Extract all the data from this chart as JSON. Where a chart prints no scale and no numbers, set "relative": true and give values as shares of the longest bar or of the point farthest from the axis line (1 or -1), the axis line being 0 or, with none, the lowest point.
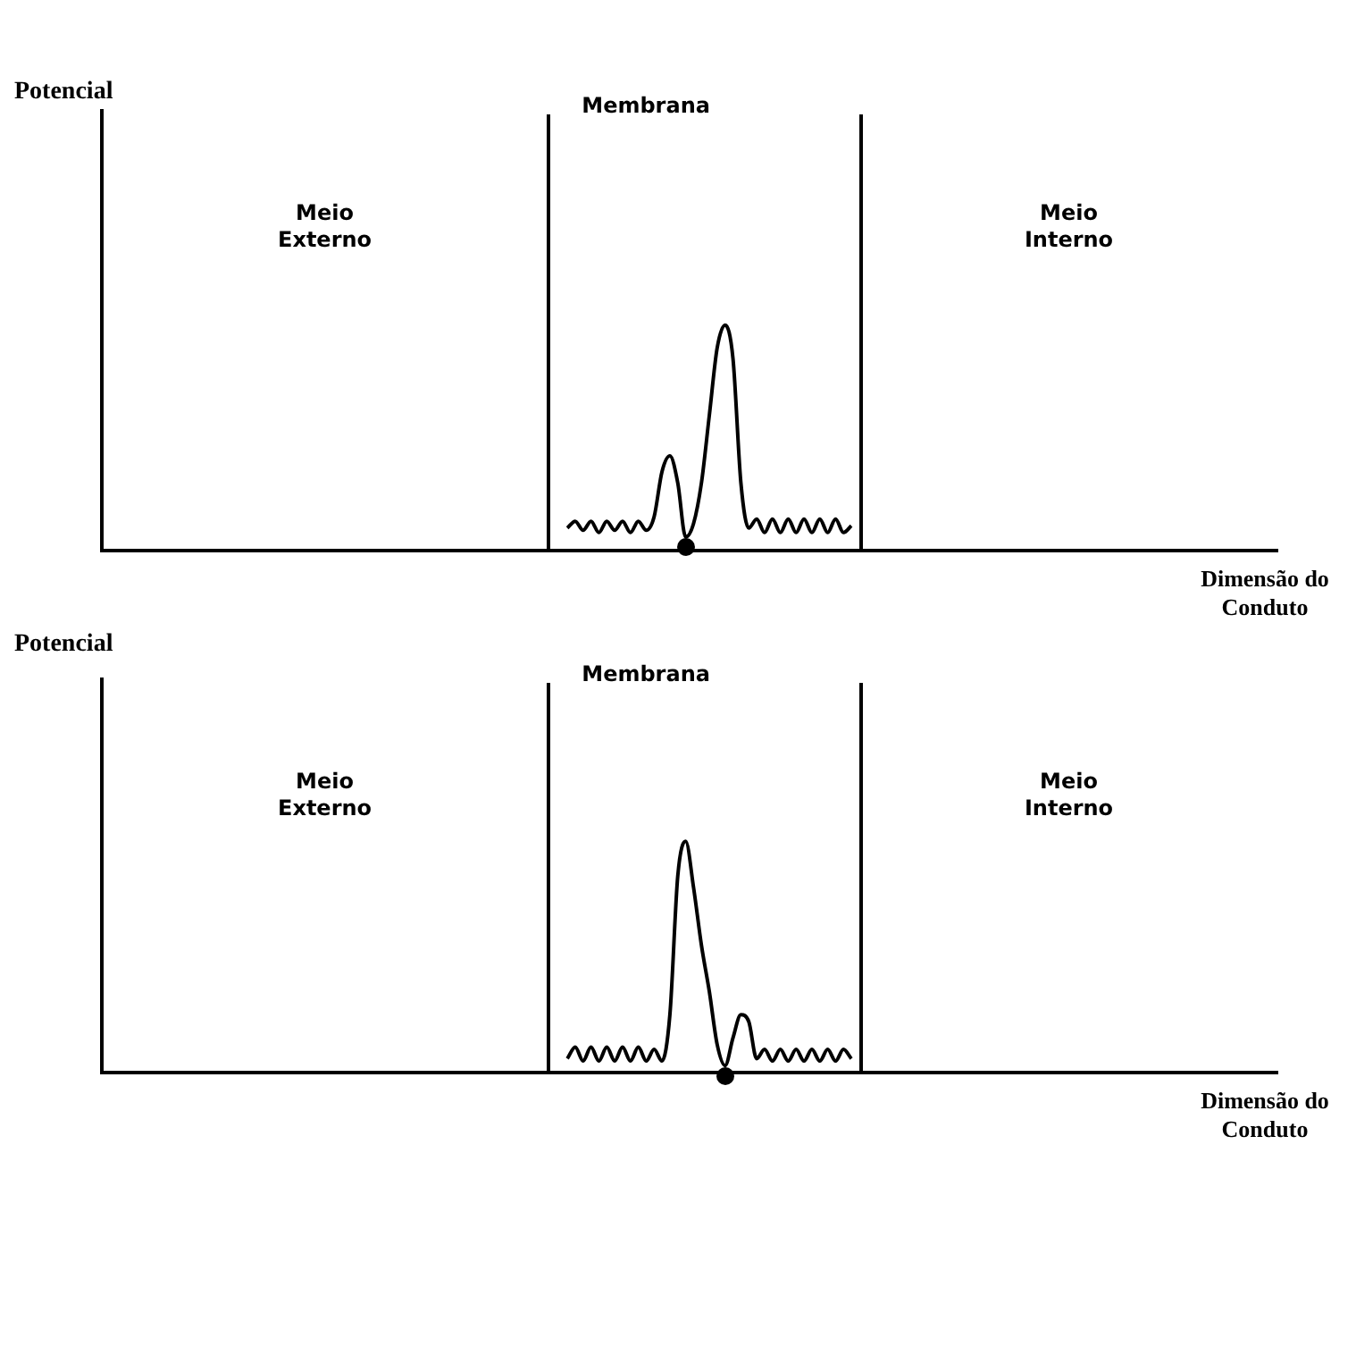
{
  "chart_data": [
    {
      "type": "line",
      "relative": true,
      "ylabel": "Potencial",
      "xlabel": "Dimensão do Conduto",
      "annotations": [
        "Membrana",
        "Meio Externo",
        "Meio Interno"
      ],
      "marker": "none",
      "line_style": "solid",
      "categories": [
        null,
        null,
        null,
        null,
        null,
        null,
        null,
        null,
        null,
        null,
        null,
        null,
        null,
        null,
        null,
        null,
        null,
        null,
        null,
        null,
        null,
        null,
        null,
        null,
        null,
        null,
        null,
        null,
        null,
        null,
        null,
        null,
        null,
        null,
        null,
        null,
        null,
        null,
        null,
        null,
        null,
        null,
        null,
        null,
        null,
        null,
        null,
        null,
        null,
        null,
        null,
        null,
        null,
        null,
        null,
        null,
        null,
        null,
        null,
        null,
        null,
        null,
        null,
        null,
        null,
        null,
        null,
        null,
        null,
        null,
        null,
        null,
        null,
        null,
        null,
        null,
        null,
        null,
        null,
        null,
        null,
        null,
        null,
        null,
        null,
        null,
        null,
        null,
        null,
        null,
        null,
        null,
        null,
        null,
        null,
        null,
        null,
        null,
        null,
        null,
        null,
        null,
        null,
        null,
        null,
        null,
        null,
        null,
        null,
        null,
        null,
        null,
        null,
        null,
        null,
        null,
        null,
        null,
        null,
        null,
        null,
        null,
        null,
        null,
        null,
        null,
        null,
        null,
        null,
        null,
        null,
        null,
        null,
        null,
        null,
        null,
        null,
        null,
        null,
        null,
        null,
        null,
        null,
        null,
        null,
        null,
        null,
        null,
        null,
        null
      ],
      "series": [
        {
          "color": "#000000",
          "values": [
            null,
            null,
            null,
            null,
            null,
            null,
            null,
            null,
            null,
            null,
            null,
            null,
            null,
            null,
            null,
            null,
            null,
            null,
            null,
            null,
            null,
            null,
            null,
            null,
            null,
            null,
            null,
            null,
            null,
            null,
            null,
            null,
            null,
            null,
            null,
            null,
            null,
            null,
            null,
            null,
            null,
            null,
            null,
            null,
            null,
            null,
            null,
            null,
            null,
            null,
            null,
            null,
            null,
            null,
            null,
            null,
            null,
            null,
            null,
            0.1,
            0.13,
            0.09,
            0.13,
            0.08,
            0.13,
            0.09,
            0.13,
            0.08,
            0.13,
            0.09,
            0.15,
            0.35,
            0.42,
            0.3,
            0.06,
            0.12,
            0.3,
            0.6,
            0.9,
            1,
            0.85,
            0.3,
            0.1,
            0.14,
            0.08,
            0.14,
            0.08,
            0.14,
            0.08,
            0.14,
            0.08,
            0.14,
            0.08,
            0.14,
            0.08,
            0.11,
            null,
            null,
            null,
            null,
            null,
            null,
            null,
            null,
            null,
            null,
            null,
            null,
            null,
            null,
            null,
            null,
            null,
            null,
            null,
            null,
            null,
            null,
            null,
            null,
            null,
            null,
            null,
            null,
            null,
            null,
            null,
            null,
            null,
            null,
            null,
            null,
            null,
            null,
            null,
            null,
            null,
            null,
            null,
            null,
            null,
            null,
            null,
            null,
            null,
            null,
            null,
            null,
            null,
            null
          ]
        }
      ]
    },
    {
      "type": "line",
      "relative": true,
      "ylabel": "Potencial",
      "xlabel": "Dimensão do Conduto",
      "annotations": [
        "Membrana",
        "Meio Externo",
        "Meio Interno"
      ],
      "marker": "none",
      "line_style": "solid",
      "categories": [
        null,
        null,
        null,
        null,
        null,
        null,
        null,
        null,
        null,
        null,
        null,
        null,
        null,
        null,
        null,
        null,
        null,
        null,
        null,
        null,
        null,
        null,
        null,
        null,
        null,
        null,
        null,
        null,
        null,
        null,
        null,
        null,
        null,
        null,
        null,
        null,
        null,
        null,
        null,
        null,
        null,
        null,
        null,
        null,
        null,
        null,
        null,
        null,
        null,
        null,
        null,
        null,
        null,
        null,
        null,
        null,
        null,
        null,
        null,
        null,
        null,
        null,
        null,
        null,
        null,
        null,
        null,
        null,
        null,
        null,
        null,
        null,
        null,
        null,
        null,
        null,
        null,
        null,
        null,
        null,
        null,
        null,
        null,
        null,
        null,
        null,
        null,
        null,
        null,
        null,
        null,
        null,
        null,
        null,
        null,
        null,
        null,
        null,
        null,
        null,
        null,
        null,
        null,
        null,
        null,
        null,
        null,
        null,
        null,
        null,
        null,
        null,
        null,
        null,
        null,
        null,
        null,
        null,
        null,
        null,
        null,
        null,
        null,
        null,
        null,
        null,
        null,
        null,
        null,
        null,
        null,
        null,
        null,
        null,
        null,
        null,
        null,
        null,
        null,
        null,
        null,
        null,
        null,
        null,
        null,
        null,
        null,
        null,
        null,
        null
      ],
      "series": [
        {
          "color": "#000000",
          "values": [
            null,
            null,
            null,
            null,
            null,
            null,
            null,
            null,
            null,
            null,
            null,
            null,
            null,
            null,
            null,
            null,
            null,
            null,
            null,
            null,
            null,
            null,
            null,
            null,
            null,
            null,
            null,
            null,
            null,
            null,
            null,
            null,
            null,
            null,
            null,
            null,
            null,
            null,
            null,
            null,
            null,
            null,
            null,
            null,
            null,
            null,
            null,
            null,
            null,
            null,
            null,
            null,
            null,
            null,
            null,
            null,
            null,
            null,
            null,
            0.06,
            0.11,
            0.05,
            0.11,
            0.05,
            0.11,
            0.05,
            0.11,
            0.05,
            0.11,
            0.05,
            0.1,
            0.05,
            0.25,
            0.85,
            1,
            0.8,
            0.55,
            0.35,
            0.12,
            0.03,
            0.15,
            0.25,
            0.22,
            0.06,
            0.1,
            0.05,
            0.1,
            0.05,
            0.1,
            0.05,
            0.1,
            0.05,
            0.1,
            0.05,
            0.1,
            0.06,
            null,
            null,
            null,
            null,
            null,
            null,
            null,
            null,
            null,
            null,
            null,
            null,
            null,
            null,
            null,
            null,
            null,
            null,
            null,
            null,
            null,
            null,
            null,
            null,
            null,
            null,
            null,
            null,
            null,
            null,
            null,
            null,
            null,
            null,
            null,
            null,
            null,
            null,
            null,
            null,
            null,
            null,
            null,
            null,
            null,
            null,
            null,
            null,
            null,
            null,
            null,
            null,
            null,
            null
          ]
        }
      ]
    }
  ]
}
